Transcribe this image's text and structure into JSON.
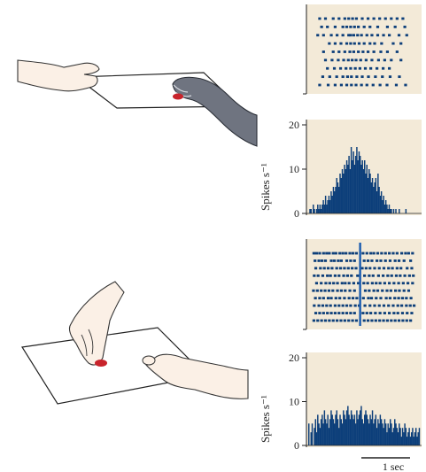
{
  "colors": {
    "panel_bg": "#f3ead8",
    "spike_blue": "#0d3f7a",
    "skin": "#fbf0e6",
    "red_tip": "#c8232b",
    "monkey_gray": "#6f7480"
  },
  "scale_bar": {
    "label": "1 sec"
  },
  "chart_data": [
    {
      "type": "raster",
      "panel": "top-raster",
      "trials": [
        {
          "spikes": [
            0.2,
            0.35,
            0.55,
            0.7,
            0.85,
            0.95,
            1.05,
            1.15,
            1.3,
            1.45,
            1.6,
            1.75,
            1.9,
            2.05,
            2.2,
            2.35
          ]
        },
        {
          "spikes": [
            0.25,
            0.4,
            0.6,
            0.8,
            0.9,
            1.0,
            1.1,
            1.2,
            1.35,
            1.5,
            1.7,
            1.95,
            2.15,
            2.4
          ]
        },
        {
          "spikes": [
            0.15,
            0.3,
            0.5,
            0.65,
            0.8,
            0.95,
            1.0,
            1.08,
            1.18,
            1.28,
            1.42,
            1.55,
            1.7,
            1.85,
            2.0,
            2.25,
            2.45
          ]
        },
        {
          "spikes": [
            0.45,
            0.6,
            0.75,
            0.9,
            1.0,
            1.1,
            1.22,
            1.35,
            1.5,
            1.62,
            1.8,
            2.1,
            2.3
          ]
        },
        {
          "spikes": [
            0.3,
            0.55,
            0.7,
            0.85,
            0.98,
            1.08,
            1.2,
            1.32,
            1.45,
            1.6,
            1.78,
            1.95,
            2.2
          ]
        },
        {
          "spikes": [
            0.35,
            0.52,
            0.68,
            0.82,
            0.94,
            1.04,
            1.14,
            1.26,
            1.4,
            1.55,
            1.72,
            1.88,
            2.05,
            2.3
          ]
        },
        {
          "spikes": [
            0.4,
            0.58,
            0.74,
            0.88,
            1.0,
            1.12,
            1.24,
            1.38,
            1.52,
            1.68,
            1.84,
            2.0
          ]
        },
        {
          "spikes": [
            0.28,
            0.46,
            0.64,
            0.8,
            0.92,
            1.02,
            1.16,
            1.3,
            1.46,
            1.64,
            1.82,
            2.02,
            2.26
          ]
        },
        {
          "spikes": [
            0.2,
            0.42,
            0.6,
            0.76,
            0.9,
            1.02,
            1.14,
            1.28,
            1.42,
            1.58,
            1.76,
            1.94,
            2.18,
            2.42
          ]
        }
      ],
      "xlim": [
        0,
        2.7
      ]
    },
    {
      "type": "bar",
      "panel": "top-histogram",
      "ylabel": "Spikes s⁻¹",
      "yticks": [
        0,
        10,
        20
      ],
      "ylim": [
        0,
        20
      ],
      "bin_width_s": 0.027,
      "values": [
        0,
        1,
        1,
        0,
        2,
        1,
        0,
        1,
        2,
        1,
        2,
        1,
        2,
        3,
        2,
        4,
        2,
        3,
        4,
        3,
        5,
        4,
        6,
        5,
        6,
        8,
        7,
        6,
        9,
        8,
        10,
        9,
        11,
        10,
        12,
        11,
        13,
        10,
        15,
        12,
        14,
        11,
        13,
        15,
        12,
        14,
        13,
        11,
        12,
        10,
        12,
        9,
        11,
        8,
        10,
        9,
        7,
        8,
        6,
        7,
        8,
        5,
        9,
        6,
        4,
        5,
        3,
        4,
        2,
        3,
        2,
        1,
        2,
        1,
        1,
        0,
        1,
        0,
        1,
        0,
        0,
        1,
        0,
        0,
        0,
        0,
        0,
        1,
        0,
        0,
        0,
        0,
        0,
        0,
        0,
        0,
        0,
        0,
        0,
        0
      ]
    },
    {
      "type": "raster",
      "panel": "bottom-raster",
      "marker_time_s": 1.25,
      "trials": [
        {
          "spikes": [
            0.05,
            0.12,
            0.2,
            0.3,
            0.38,
            0.45,
            0.55,
            0.62,
            0.72,
            0.8,
            0.88,
            0.98,
            1.06,
            1.15,
            1.32,
            1.42,
            1.52,
            1.6,
            1.7,
            1.8,
            1.9,
            2.0,
            2.1,
            2.2,
            2.32,
            2.42,
            2.5,
            2.6
          ]
        },
        {
          "spikes": [
            0.08,
            0.18,
            0.26,
            0.35,
            0.5,
            0.58,
            0.68,
            0.76,
            0.9,
            1.0,
            1.1,
            1.35,
            1.45,
            1.55,
            1.68,
            1.78,
            1.9,
            2.02,
            2.15,
            2.25,
            2.38,
            2.55
          ]
        },
        {
          "spikes": [
            0.1,
            0.22,
            0.32,
            0.42,
            0.52,
            0.64,
            0.74,
            0.84,
            0.94,
            1.04,
            1.14,
            1.3,
            1.4,
            1.5,
            1.62,
            1.74,
            1.86,
            1.98,
            2.08,
            2.2,
            2.3,
            2.46,
            2.58
          ]
        },
        {
          "spikes": [
            0.06,
            0.16,
            0.28,
            0.4,
            0.48,
            0.6,
            0.7,
            0.82,
            0.92,
            1.02,
            1.18,
            1.36,
            1.48,
            1.58,
            1.72,
            1.84,
            1.96,
            2.06,
            2.18,
            2.28,
            2.4,
            2.52,
            2.62
          ]
        },
        {
          "spikes": [
            0.12,
            0.24,
            0.36,
            0.46,
            0.56,
            0.66,
            0.78,
            0.86,
            0.96,
            1.08,
            1.2,
            1.34,
            1.44,
            1.56,
            1.66,
            1.76,
            1.88,
            2.0,
            2.12,
            2.24,
            2.36,
            2.48,
            2.6
          ]
        },
        {
          "spikes": [
            0.04,
            0.14,
            0.24,
            0.34,
            0.44,
            0.54,
            0.66,
            0.76,
            0.86,
            0.98,
            1.1,
            1.38,
            1.48,
            1.6,
            1.7,
            1.82,
            1.94,
            2.04,
            2.16,
            2.26,
            2.38,
            2.5
          ]
        },
        {
          "spikes": [
            0.09,
            0.2,
            0.3,
            0.42,
            0.5,
            0.62,
            0.72,
            0.84,
            0.96,
            1.06,
            1.16,
            1.33,
            1.46,
            1.54,
            1.66,
            1.78,
            1.92,
            2.02,
            2.14,
            2.24,
            2.34,
            2.44,
            2.56
          ]
        },
        {
          "spikes": [
            0.06,
            0.18,
            0.28,
            0.38,
            0.48,
            0.6,
            0.7,
            0.8,
            0.9,
            1.0,
            1.12,
            1.22,
            1.37,
            1.5,
            1.62,
            1.74,
            1.86,
            1.98,
            2.1,
            2.22,
            2.32,
            2.44,
            2.54,
            2.64
          ]
        },
        {
          "spikes": [
            0.1,
            0.2,
            0.3,
            0.4,
            0.5,
            0.6,
            0.7,
            0.8,
            0.9,
            1.0,
            1.1,
            1.32,
            1.42,
            1.52,
            1.64,
            1.76,
            1.88,
            2.0,
            2.12,
            2.22,
            2.34,
            2.46,
            2.58
          ]
        },
        {
          "spikes": [
            0.05,
            0.15,
            0.25,
            0.35,
            0.45,
            0.55,
            0.65,
            0.75,
            0.85,
            0.95,
            1.05,
            1.15,
            1.35,
            1.45,
            1.55,
            1.65,
            1.75,
            1.85,
            1.95,
            2.05,
            2.15,
            2.25,
            2.35,
            2.45,
            2.55
          ]
        }
      ],
      "xlim": [
        0,
        2.7
      ]
    },
    {
      "type": "bar",
      "panel": "bottom-histogram",
      "ylabel": "Spikes s⁻¹",
      "yticks": [
        0,
        10,
        20
      ],
      "ylim": [
        0,
        20
      ],
      "bin_width_s": 0.027,
      "values": [
        5,
        0,
        3,
        5,
        0,
        4,
        6,
        3,
        7,
        5,
        4,
        6,
        7,
        5,
        8,
        6,
        5,
        7,
        4,
        6,
        8,
        7,
        6,
        5,
        7,
        8,
        6,
        4,
        7,
        6,
        5,
        8,
        7,
        6,
        8,
        9,
        7,
        6,
        8,
        7,
        6,
        7,
        5,
        8,
        6,
        7,
        8,
        9,
        6,
        5,
        7,
        8,
        7,
        6,
        5,
        7,
        6,
        8,
        5,
        6,
        7,
        4,
        6,
        5,
        7,
        6,
        5,
        4,
        6,
        5,
        3,
        5,
        4,
        6,
        5,
        3,
        4,
        6,
        5,
        4,
        3,
        5,
        4,
        2,
        4,
        3,
        5,
        4,
        2,
        3,
        4,
        2,
        3,
        4,
        2,
        3,
        4,
        2,
        3,
        4
      ]
    }
  ]
}
